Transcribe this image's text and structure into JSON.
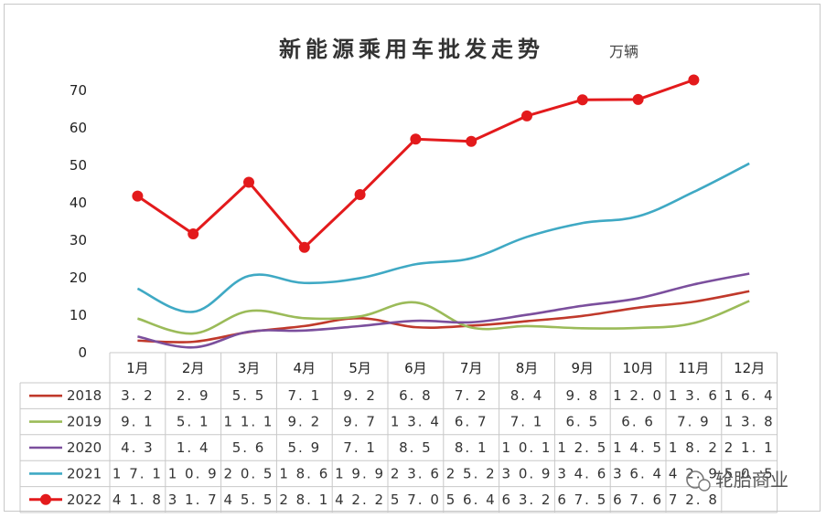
{
  "chart_data": {
    "type": "line",
    "title": "新能源乘用车批发走势",
    "unit": "万辆",
    "categories": [
      "1月",
      "2月",
      "3月",
      "4月",
      "5月",
      "6月",
      "7月",
      "8月",
      "9月",
      "10月",
      "11月",
      "12月"
    ],
    "ylim": [
      0,
      70
    ],
    "yticks": [
      0,
      10,
      20,
      30,
      40,
      50,
      60,
      70
    ],
    "grid": false,
    "series": [
      {
        "name": "2018",
        "color": "#c0392b",
        "marker": false,
        "values": [
          3.2,
          2.9,
          5.5,
          7.1,
          9.2,
          6.8,
          7.2,
          8.4,
          9.8,
          12.0,
          13.6,
          16.4
        ],
        "labels": [
          "3.2",
          "2.9",
          "5.5",
          "7.1",
          "9.2",
          "6.8",
          "7.2",
          "8.4",
          "9.8",
          "12.0",
          "13.6",
          "16.4"
        ]
      },
      {
        "name": "2019",
        "color": "#9bbb59",
        "marker": false,
        "values": [
          9.1,
          5.1,
          11.1,
          9.2,
          9.7,
          13.4,
          6.7,
          7.1,
          6.5,
          6.6,
          7.9,
          13.8
        ],
        "labels": [
          "9.1",
          "5.1",
          "11.1",
          "9.2",
          "9.7",
          "13.4",
          "6.7",
          "7.1",
          "6.5",
          "6.6",
          "7.9",
          "13.8"
        ]
      },
      {
        "name": "2020",
        "color": "#7b4f9d",
        "marker": false,
        "values": [
          4.3,
          1.4,
          5.6,
          5.9,
          7.1,
          8.5,
          8.1,
          10.1,
          12.5,
          14.5,
          18.2,
          21.1
        ],
        "labels": [
          "4.3",
          "1.4",
          "5.6",
          "5.9",
          "7.1",
          "8.5",
          "8.1",
          "10.1",
          "12.5",
          "14.5",
          "18.2",
          "21.1"
        ]
      },
      {
        "name": "2021",
        "color": "#3fa9c4",
        "marker": false,
        "values": [
          17.1,
          10.9,
          20.5,
          18.6,
          19.9,
          23.6,
          25.2,
          30.9,
          34.6,
          36.4,
          42.9,
          50.5
        ],
        "labels": [
          "17.1",
          "10.9",
          "20.5",
          "18.6",
          "19.9",
          "23.6",
          "25.2",
          "30.9",
          "34.6",
          "36.4",
          "42.9",
          "50.5"
        ]
      },
      {
        "name": "2022",
        "color": "#e31a1c",
        "marker": true,
        "values": [
          41.8,
          31.7,
          45.5,
          28.1,
          42.2,
          57.0,
          56.4,
          63.2,
          67.5,
          67.6,
          72.8,
          null
        ],
        "labels": [
          "41.8",
          "31.7",
          "45.5",
          "28.1",
          "42.2",
          "57.0",
          "56.4",
          "63.2",
          "67.5",
          "67.6",
          "72.8",
          ""
        ]
      }
    ]
  },
  "watermark": "轮胎商业"
}
